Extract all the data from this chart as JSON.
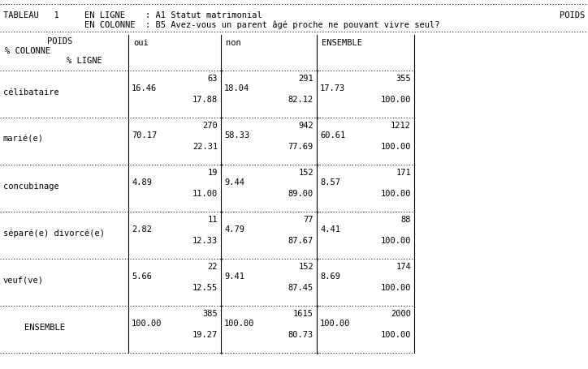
{
  "title_line1": "TABLEAU   1     EN LIGNE    : A1 Statut matrimonial",
  "title_line2": "                EN COLONNE  : B5 Avez-vous un parent âgé proche ne pouvant vivre seul?",
  "title_poids": "POIDS",
  "col_headers": [
    "oui",
    "non",
    "ENSEMBLE"
  ],
  "header_labels": [
    "POIDS",
    "% COLONNE",
    "% LIGNE"
  ],
  "rows": [
    {
      "label": "célibataire",
      "oui": [
        "63",
        "16.46",
        "17.88"
      ],
      "non": [
        "291",
        "18.04",
        "82.12"
      ],
      "ens": [
        "355",
        "17.73",
        "100.00"
      ]
    },
    {
      "label": "marié(e)",
      "oui": [
        "270",
        "70.17",
        "22.31"
      ],
      "non": [
        "942",
        "58.33",
        "77.69"
      ],
      "ens": [
        "1212",
        "60.61",
        "100.00"
      ]
    },
    {
      "label": "concubinage",
      "oui": [
        "19",
        "4.89",
        "11.00"
      ],
      "non": [
        "152",
        "9.44",
        "89.00"
      ],
      "ens": [
        "171",
        "8.57",
        "100.00"
      ]
    },
    {
      "label": "séparé(e) divorcé(e)",
      "oui": [
        "11",
        "2.82",
        "12.33"
      ],
      "non": [
        "77",
        "4.79",
        "87.67"
      ],
      "ens": [
        "88",
        "4.41",
        "100.00"
      ]
    },
    {
      "label": "veuf(ve)",
      "oui": [
        "22",
        "5.66",
        "12.55"
      ],
      "non": [
        "152",
        "9.41",
        "87.45"
      ],
      "ens": [
        "174",
        "8.69",
        "100.00"
      ]
    },
    {
      "label": "ENSEMBLE",
      "oui": [
        "385",
        "100.00",
        "19.27"
      ],
      "non": [
        "1615",
        "100.00",
        "80.73"
      ],
      "ens": [
        "2000",
        "100.00",
        "100.00"
      ]
    }
  ],
  "font_family": "monospace",
  "font_size": 7.5,
  "title_font_size": 7.5
}
